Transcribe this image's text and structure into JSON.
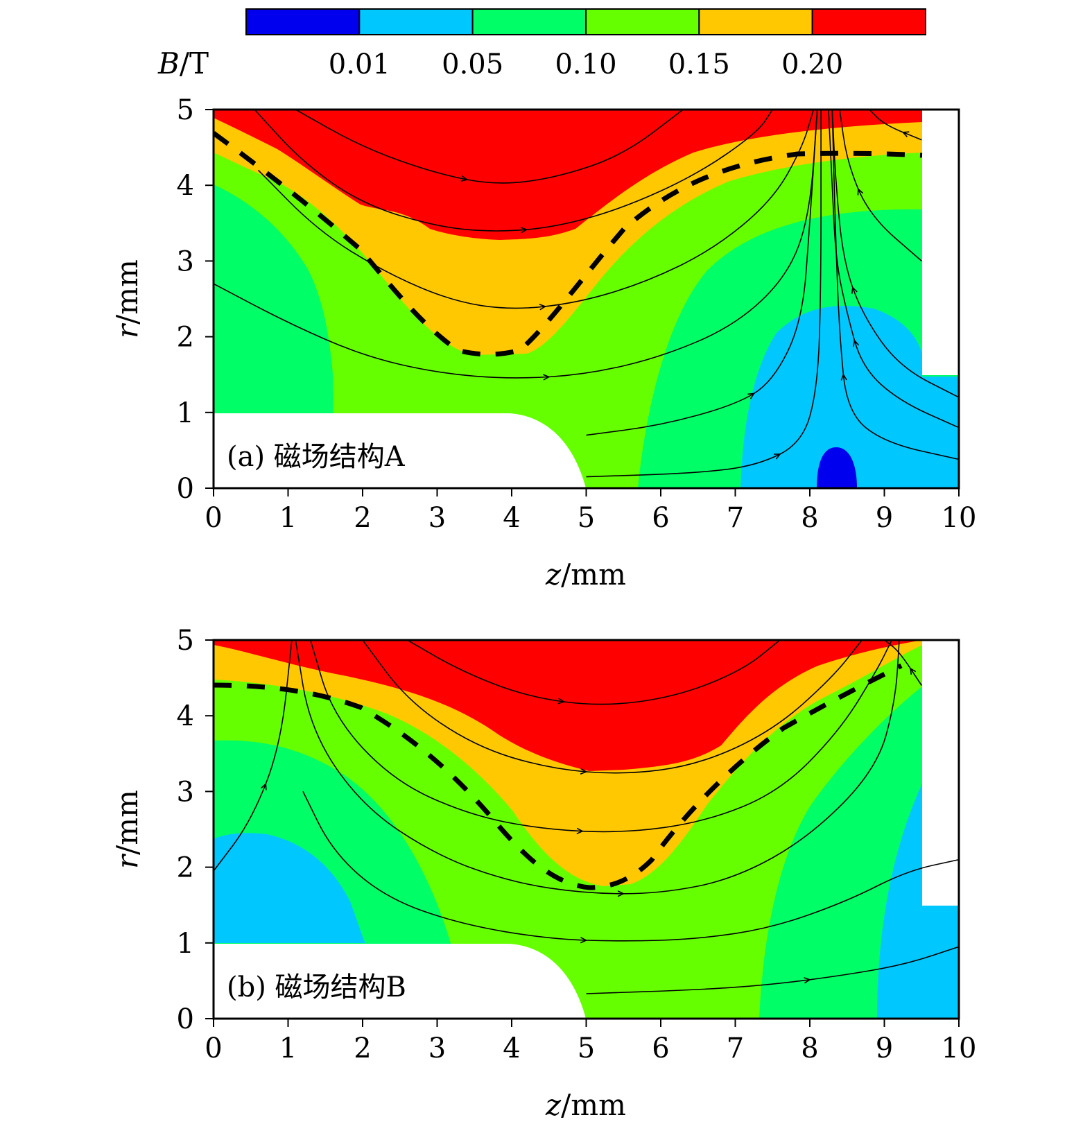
{
  "colorbar": {
    "label_var": "B",
    "label_unit": "/T",
    "tick_labels": [
      "0.01",
      "0.05",
      "0.10",
      "0.15",
      "0.20"
    ],
    "levels": [
      0.01,
      0.05,
      0.1,
      0.15,
      0.2
    ],
    "colors": [
      "#0000ee",
      "#00c8ff",
      "#00ff66",
      "#66ff00",
      "#ffc800",
      "#ff0000"
    ]
  },
  "chart_data": [
    {
      "type": "heatmap",
      "panel": "a",
      "label": "(a) 磁场结构A",
      "xlabel_var": "z",
      "xlabel_unit": "/mm",
      "ylabel_var": "r",
      "ylabel_unit": "/mm",
      "xlim": [
        0,
        10
      ],
      "ylim": [
        0,
        5
      ],
      "x_ticks": [
        "0",
        "1",
        "2",
        "3",
        "4",
        "5",
        "6",
        "7",
        "8",
        "9",
        "10"
      ],
      "y_ticks": [
        "0",
        "1",
        "2",
        "3",
        "4",
        "5"
      ],
      "field_lines": [
        [
          [
            1.1,
            5
          ],
          [
            2,
            4.5
          ],
          [
            3,
            4.15
          ],
          [
            3.8,
            4.0
          ],
          [
            4.6,
            4.1
          ],
          [
            5.5,
            4.4
          ],
          [
            6.3,
            5
          ]
        ],
        [
          [
            0.55,
            5
          ],
          [
            1.2,
            4.3
          ],
          [
            2,
            3.75
          ],
          [
            3,
            3.45
          ],
          [
            3.8,
            3.38
          ],
          [
            4.6,
            3.45
          ],
          [
            5.5,
            3.7
          ],
          [
            6.5,
            4.15
          ],
          [
            7.3,
            4.7
          ],
          [
            7.5,
            5
          ]
        ],
        [
          [
            0.6,
            4.2
          ],
          [
            1.4,
            3.4
          ],
          [
            2.3,
            2.85
          ],
          [
            3.2,
            2.47
          ],
          [
            4.0,
            2.35
          ],
          [
            4.9,
            2.45
          ],
          [
            5.8,
            2.72
          ],
          [
            6.7,
            3.15
          ],
          [
            7.5,
            3.8
          ],
          [
            7.9,
            4.5
          ],
          [
            8.05,
            5
          ]
        ],
        [
          [
            0,
            2.7
          ],
          [
            1,
            2.18
          ],
          [
            2,
            1.75
          ],
          [
            3,
            1.52
          ],
          [
            4,
            1.44
          ],
          [
            5,
            1.5
          ],
          [
            6,
            1.73
          ],
          [
            7,
            2.15
          ],
          [
            7.7,
            2.8
          ],
          [
            8.0,
            3.6
          ],
          [
            8.1,
            5
          ]
        ],
        [
          [
            5.0,
            0.7
          ],
          [
            6,
            0.83
          ],
          [
            7,
            1.1
          ],
          [
            7.5,
            1.4
          ],
          [
            7.9,
            2.2
          ],
          [
            8.0,
            3.5
          ],
          [
            8.1,
            5
          ]
        ],
        [
          [
            5.0,
            0.15
          ],
          [
            6.5,
            0.2
          ],
          [
            7.3,
            0.3
          ],
          [
            7.9,
            0.6
          ],
          [
            8.1,
            1.3
          ],
          [
            8.15,
            2.5
          ],
          [
            8.15,
            5
          ]
        ],
        [
          [
            10,
            1.2
          ],
          [
            9.2,
            1.6
          ],
          [
            8.7,
            2.3
          ],
          [
            8.45,
            3.0
          ],
          [
            8.35,
            4.0
          ],
          [
            8.3,
            5
          ]
        ],
        [
          [
            10,
            0.8
          ],
          [
            9.2,
            1.15
          ],
          [
            8.7,
            1.6
          ],
          [
            8.5,
            2.3
          ],
          [
            8.35,
            3.0
          ],
          [
            8.3,
            4.0
          ],
          [
            8.25,
            5
          ]
        ],
        [
          [
            10,
            0.38
          ],
          [
            9.0,
            0.6
          ],
          [
            8.5,
            1.0
          ],
          [
            8.4,
            2.0
          ],
          [
            8.35,
            3.2
          ],
          [
            8.3,
            5
          ]
        ],
        [
          [
            9.5,
            3.0
          ],
          [
            8.8,
            3.6
          ],
          [
            8.5,
            4.3
          ],
          [
            8.4,
            5
          ]
        ],
        [
          [
            9.5,
            4.6
          ],
          [
            9.0,
            4.8
          ],
          [
            8.8,
            5
          ]
        ]
      ]
    },
    {
      "type": "heatmap",
      "panel": "b",
      "label": "(b) 磁场结构B",
      "xlabel_var": "z",
      "xlabel_unit": "/mm",
      "ylabel_var": "r",
      "ylabel_unit": "/mm",
      "xlim": [
        0,
        10
      ],
      "ylim": [
        0,
        5
      ],
      "x_ticks": [
        "0",
        "1",
        "2",
        "3",
        "4",
        "5",
        "6",
        "7",
        "8",
        "9",
        "10"
      ],
      "y_ticks": [
        "0",
        "1",
        "2",
        "3",
        "4",
        "5"
      ],
      "field_lines": [
        [
          [
            2.6,
            5
          ],
          [
            3.3,
            4.6
          ],
          [
            4.2,
            4.25
          ],
          [
            5.2,
            4.12
          ],
          [
            6.2,
            4.25
          ],
          [
            7.1,
            4.6
          ],
          [
            7.6,
            5
          ]
        ],
        [
          [
            2.0,
            5
          ],
          [
            2.6,
            4.2
          ],
          [
            3.5,
            3.6
          ],
          [
            4.5,
            3.3
          ],
          [
            5.5,
            3.22
          ],
          [
            6.5,
            3.35
          ],
          [
            7.5,
            3.8
          ],
          [
            8.3,
            4.5
          ],
          [
            8.7,
            5
          ]
        ],
        [
          [
            1.3,
            5
          ],
          [
            1.6,
            4.0
          ],
          [
            2.4,
            3.15
          ],
          [
            3.4,
            2.7
          ],
          [
            4.4,
            2.5
          ],
          [
            5.5,
            2.45
          ],
          [
            6.6,
            2.6
          ],
          [
            7.6,
            3.0
          ],
          [
            8.4,
            3.8
          ],
          [
            8.9,
            4.6
          ],
          [
            9.1,
            5
          ]
        ],
        [
          [
            1.1,
            5
          ],
          [
            1.3,
            3.8
          ],
          [
            2.0,
            2.8
          ],
          [
            3.0,
            2.15
          ],
          [
            4.0,
            1.8
          ],
          [
            5.0,
            1.65
          ],
          [
            6.0,
            1.65
          ],
          [
            7.0,
            1.85
          ],
          [
            8.0,
            2.4
          ],
          [
            8.9,
            3.3
          ],
          [
            9.15,
            4.2
          ],
          [
            9.2,
            5
          ]
        ],
        [
          [
            0,
            1.95
          ],
          [
            0.5,
            2.6
          ],
          [
            0.9,
            3.6
          ],
          [
            1.05,
            5
          ]
        ],
        [
          [
            1.2,
            3.0
          ],
          [
            1.6,
            2.2
          ],
          [
            2.3,
            1.6
          ],
          [
            3.3,
            1.25
          ],
          [
            4.5,
            1.05
          ],
          [
            5.5,
            1.02
          ],
          [
            6.5,
            1.05
          ],
          [
            7.5,
            1.2
          ],
          [
            8.5,
            1.55
          ],
          [
            9.3,
            1.95
          ],
          [
            10,
            2.1
          ]
        ],
        [
          [
            5.0,
            0.33
          ],
          [
            6.5,
            0.38
          ],
          [
            7.5,
            0.45
          ],
          [
            8.5,
            0.58
          ],
          [
            9.3,
            0.72
          ],
          [
            10,
            0.95
          ]
        ],
        [
          [
            9.5,
            4.4
          ],
          [
            9.2,
            4.85
          ],
          [
            9.0,
            5
          ]
        ]
      ]
    }
  ]
}
